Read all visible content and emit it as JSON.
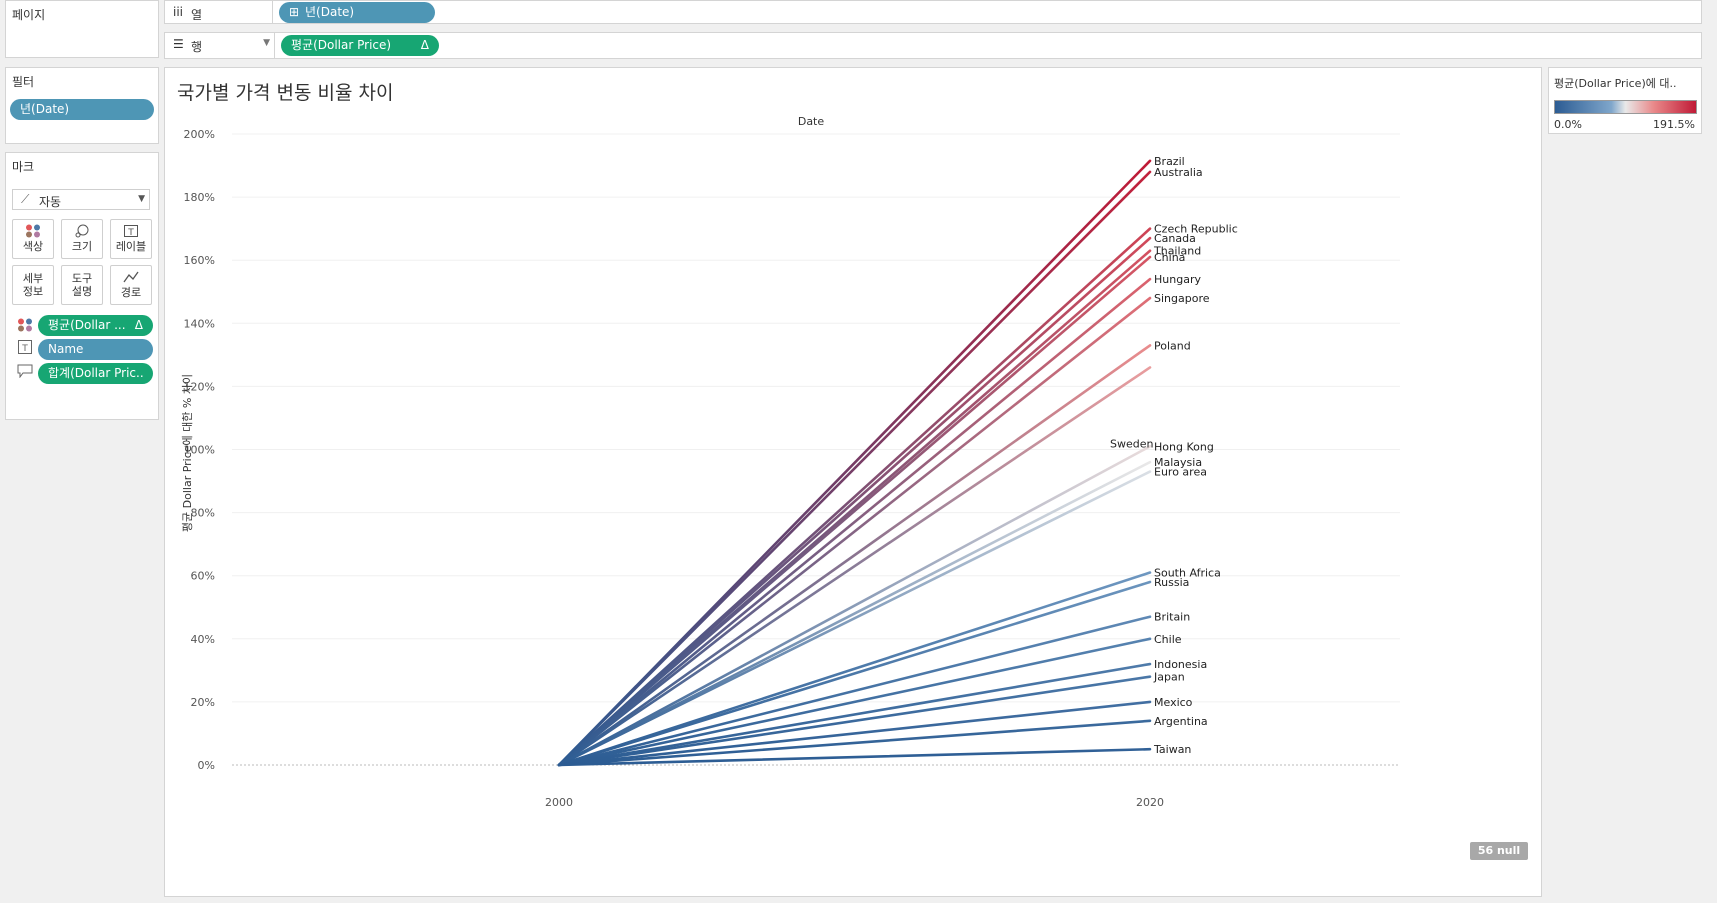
{
  "shelves": {
    "pages_label": "페이지",
    "columns_label": "열",
    "rows_label": "행",
    "columns_pill": "년(Date)",
    "rows_pill": "평균(Dollar Price)",
    "rows_pill_icon": "Δ"
  },
  "filters": {
    "title": "필터",
    "items": [
      "년(Date)"
    ]
  },
  "marks": {
    "title": "마크",
    "type_select": "자동",
    "buttons": [
      {
        "label": "색상",
        "icon": "color-icon"
      },
      {
        "label": "크기",
        "icon": "size-icon"
      },
      {
        "label": "레이블",
        "icon": "label-icon"
      },
      {
        "label": "세부\n정보",
        "icon": "detail-icon"
      },
      {
        "label": "도구\n설명",
        "icon": "tooltip-icon"
      },
      {
        "label": "경로",
        "icon": "path-icon"
      }
    ],
    "fields": [
      {
        "icon": "color-dots-icon",
        "text": "평균(Dollar ...",
        "badge": "Δ",
        "color": "green"
      },
      {
        "icon": "text-icon",
        "text": "Name",
        "badge": "",
        "color": "blue"
      },
      {
        "icon": "tooltip-icon",
        "text": "합계(Dollar Pric..",
        "badge": "",
        "color": "green"
      }
    ]
  },
  "viz": {
    "title": "국가별 가격 변동 비율 차이",
    "null_badge": "56 null"
  },
  "legend": {
    "title": "평균(Dollar Price)에 대..",
    "min_label": "0.0%",
    "max_label": "191.5%",
    "color_low": "#2c5c93",
    "color_mid": "#e9e9e9",
    "color_high": "#c01a36"
  },
  "chart_data": {
    "type": "line",
    "title": "국가별 가격 변동 비율 차이",
    "top_axis_label": "Date",
    "ylabel": "평균 Dollar Price에 대한 % 차이",
    "x": [
      "2000",
      "2020"
    ],
    "x_ticks": [
      "2000",
      "2020"
    ],
    "ylim": [
      -10,
      200
    ],
    "y_ticks": [
      "0%",
      "20%",
      "40%",
      "60%",
      "80%",
      "100%",
      "120%",
      "140%",
      "160%",
      "180%",
      "200%"
    ],
    "color_range": [
      0,
      191.5
    ],
    "series": [
      {
        "name": "Brazil",
        "values": [
          0,
          191.5
        ]
      },
      {
        "name": "Australia",
        "values": [
          0,
          188
        ]
      },
      {
        "name": "Czech Republic",
        "values": [
          0,
          170
        ]
      },
      {
        "name": "Canada",
        "values": [
          0,
          167
        ]
      },
      {
        "name": "Thailand",
        "values": [
          0,
          163
        ]
      },
      {
        "name": "China",
        "values": [
          0,
          161
        ]
      },
      {
        "name": "Hungary",
        "values": [
          0,
          154
        ]
      },
      {
        "name": "Singapore",
        "values": [
          0,
          148
        ]
      },
      {
        "name": "Poland",
        "values": [
          0,
          133
        ]
      },
      {
        "name": "Sweden",
        "values": [
          0,
          126
        ]
      },
      {
        "name": "Hong Kong",
        "values": [
          0,
          101
        ]
      },
      {
        "name": "Malaysia",
        "values": [
          0,
          96
        ]
      },
      {
        "name": "Euro area",
        "values": [
          0,
          93
        ]
      },
      {
        "name": "South Africa",
        "values": [
          0,
          61
        ]
      },
      {
        "name": "Russia",
        "values": [
          0,
          58
        ]
      },
      {
        "name": "Britain",
        "values": [
          0,
          47
        ]
      },
      {
        "name": "Chile",
        "values": [
          0,
          40
        ]
      },
      {
        "name": "Indonesia",
        "values": [
          0,
          32
        ]
      },
      {
        "name": "Japan",
        "values": [
          0,
          28
        ]
      },
      {
        "name": "Mexico",
        "values": [
          0,
          20
        ]
      },
      {
        "name": "Argentina",
        "values": [
          0,
          14
        ]
      },
      {
        "name": "Taiwan",
        "values": [
          0,
          5
        ]
      }
    ],
    "grid": true
  }
}
